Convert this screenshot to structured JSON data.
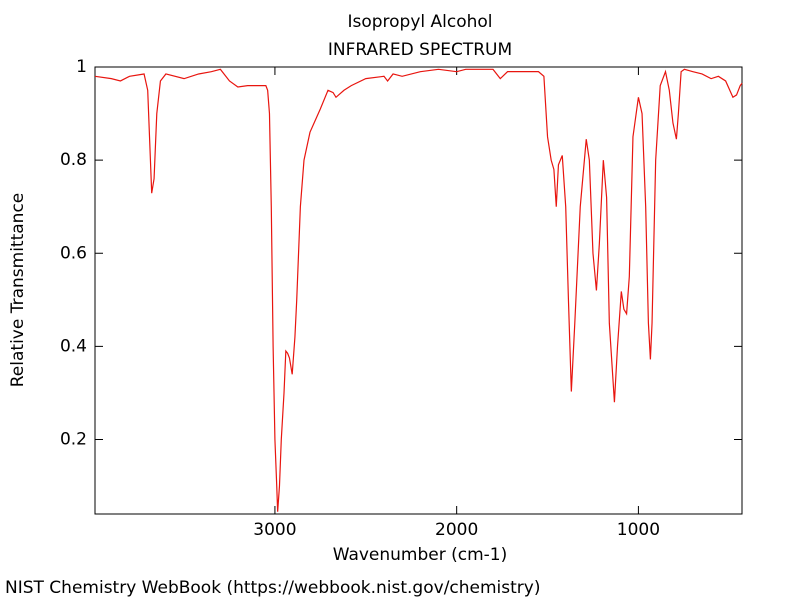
{
  "chart_data": {
    "type": "line",
    "title": "Isopropyl Alcohol",
    "subtitle": "INFRARED SPECTRUM",
    "x_label": "Wavenumber (cm-1)",
    "y_label": "Relative Transmittance",
    "footer": "NIST Chemistry WebBook (https://webbook.nist.gov/chemistry)",
    "color": "#e8150f",
    "xlim": [
      3990,
      430
    ],
    "ylim": [
      0.04,
      1.0
    ],
    "xticks": [
      3000,
      2000,
      1000
    ],
    "yticks": [
      0.2,
      0.4,
      0.6,
      0.8,
      1
    ],
    "x": [
      3990,
      3900,
      3850,
      3800,
      3720,
      3700,
      3690,
      3678,
      3665,
      3650,
      3630,
      3600,
      3500,
      3420,
      3350,
      3300,
      3250,
      3204,
      3150,
      3050,
      3040,
      3030,
      3020,
      3010,
      3000,
      2990,
      2985,
      2975,
      2965,
      2950,
      2940,
      2930,
      2920,
      2905,
      2890,
      2880,
      2860,
      2840,
      2807,
      2750,
      2708,
      2680,
      2664,
      2620,
      2580,
      2500,
      2400,
      2380,
      2350,
      2300,
      2200,
      2100,
      2000,
      1950,
      1880,
      1800,
      1760,
      1720,
      1600,
      1550,
      1520,
      1500,
      1480,
      1465,
      1452,
      1440,
      1419,
      1400,
      1385,
      1369,
      1350,
      1320,
      1287,
      1270,
      1250,
      1231,
      1215,
      1193,
      1175,
      1160,
      1132,
      1115,
      1094,
      1080,
      1065,
      1050,
      1030,
      1000,
      980,
      960,
      945,
      934,
      925,
      905,
      880,
      851,
      830,
      810,
      791,
      780,
      765,
      747,
      700,
      650,
      600,
      560,
      520,
      480,
      460,
      440,
      430
    ],
    "values": [
      0.98,
      0.975,
      0.97,
      0.98,
      0.985,
      0.95,
      0.85,
      0.729,
      0.76,
      0.9,
      0.97,
      0.985,
      0.975,
      0.985,
      0.99,
      0.995,
      0.97,
      0.957,
      0.96,
      0.96,
      0.95,
      0.9,
      0.7,
      0.4,
      0.2,
      0.1,
      0.045,
      0.1,
      0.2,
      0.3,
      0.39,
      0.385,
      0.375,
      0.34,
      0.42,
      0.5,
      0.7,
      0.8,
      0.86,
      0.91,
      0.95,
      0.945,
      0.935,
      0.95,
      0.96,
      0.975,
      0.98,
      0.97,
      0.985,
      0.98,
      0.99,
      0.995,
      0.99,
      0.995,
      0.995,
      0.995,
      0.975,
      0.99,
      0.99,
      0.99,
      0.98,
      0.85,
      0.8,
      0.78,
      0.7,
      0.79,
      0.81,
      0.7,
      0.5,
      0.303,
      0.45,
      0.7,
      0.845,
      0.8,
      0.6,
      0.52,
      0.62,
      0.8,
      0.72,
      0.45,
      0.28,
      0.4,
      0.518,
      0.48,
      0.47,
      0.55,
      0.85,
      0.935,
      0.9,
      0.7,
      0.45,
      0.372,
      0.45,
      0.8,
      0.96,
      0.99,
      0.95,
      0.88,
      0.845,
      0.9,
      0.99,
      0.995,
      0.99,
      0.985,
      0.975,
      0.98,
      0.97,
      0.935,
      0.94,
      0.96,
      0.965
    ]
  }
}
